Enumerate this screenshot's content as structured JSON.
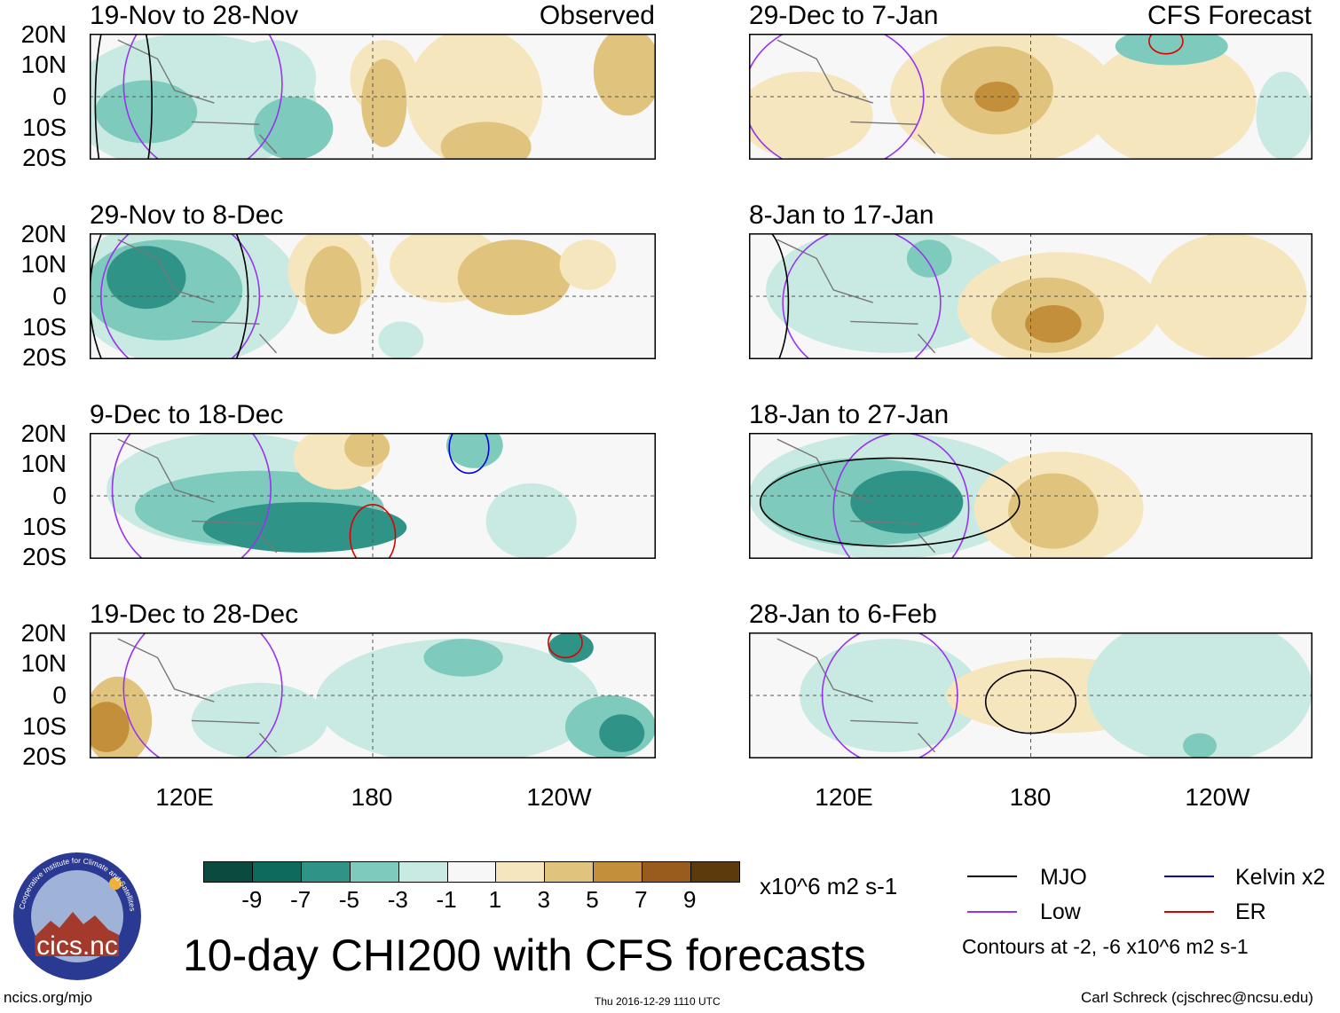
{
  "chart_data": {
    "type": "heatmap",
    "title": "10-day CHI200 with CFS forecasts",
    "units": "x10^6 m2 s-1",
    "y_tick_labels": [
      "20N",
      "10N",
      "0",
      "10S",
      "20S"
    ],
    "x_tick_labels": [
      "120E",
      "180",
      "120W"
    ],
    "panels": [
      {
        "id": "p1",
        "title": "19-Nov to 28-Nov",
        "tag": "Observed"
      },
      {
        "id": "p2",
        "title": "29-Nov to 8-Dec",
        "tag": ""
      },
      {
        "id": "p3",
        "title": "9-Dec to 18-Dec",
        "tag": ""
      },
      {
        "id": "p4",
        "title": "19-Dec to 28-Dec",
        "tag": ""
      },
      {
        "id": "p5",
        "title": "29-Dec to 7-Jan",
        "tag": "CFS Forecast"
      },
      {
        "id": "p6",
        "title": "8-Jan to 17-Jan",
        "tag": ""
      },
      {
        "id": "p7",
        "title": "18-Jan to 27-Jan",
        "tag": ""
      },
      {
        "id": "p8",
        "title": "28-Jan to 6-Feb",
        "tag": ""
      }
    ],
    "colorbar": {
      "labels": [
        "-9",
        "-7",
        "-5",
        "-3",
        "-1",
        "1",
        "3",
        "5",
        "7",
        "9"
      ],
      "colors": [
        "#0b4a3e",
        "#0e6a5c",
        "#2f9487",
        "#7ecbbd",
        "#c9eae2",
        "#f7f7f7",
        "#f6e6bd",
        "#e0c47d",
        "#c48f3a",
        "#9a5c1c",
        "#5c3a0c"
      ]
    },
    "legend": [
      {
        "label": "MJO",
        "color": "#000000"
      },
      {
        "label": "Low",
        "color": "#9933ee"
      },
      {
        "label": "Kelvin x2",
        "color": "#0000dd"
      },
      {
        "label": "ER",
        "color": "#dd0000"
      }
    ],
    "contour_note": "Contours at -2, -6 x10^6 m2 s-1"
  },
  "logo": {
    "text": "cics.nc",
    "ring_text": "Cooperative Institute for Climate and Satellites"
  },
  "footer": {
    "left": "ncics.org/mjo",
    "center": "Thu 2016-12-29 1110 UTC",
    "right": "Carl Schreck (cjschrec@ncsu.edu)"
  }
}
